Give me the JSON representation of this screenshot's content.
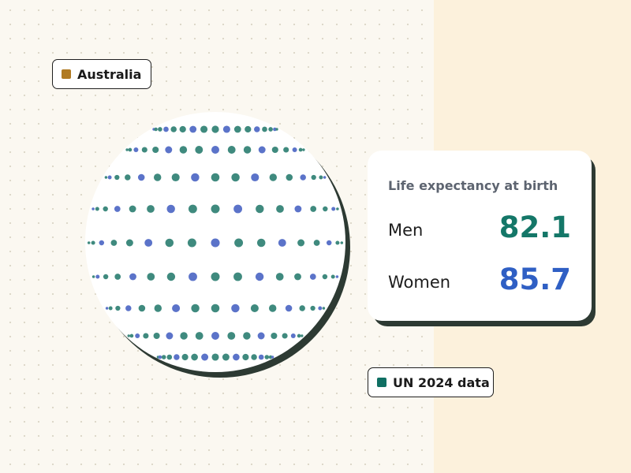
{
  "country_tag": {
    "label": "Australia",
    "swatch_color": "#b07a22"
  },
  "source_tag": {
    "label": "UN 2024 data",
    "swatch_color": "#0f6f63"
  },
  "card": {
    "title": "Life expectancy at birth",
    "rows": [
      {
        "label": "Men",
        "value": "82.1",
        "color": "#147768"
      },
      {
        "label": "Women",
        "value": "85.7",
        "color": "#2f5fc4"
      }
    ]
  },
  "globe": {
    "dot_color_primary": "#3f8a7e",
    "dot_color_secondary": "#5b73c9"
  },
  "colors": {
    "background_left": "#fbf8f1",
    "background_right": "#fcf1dc",
    "shadow": "#2d3a33"
  }
}
